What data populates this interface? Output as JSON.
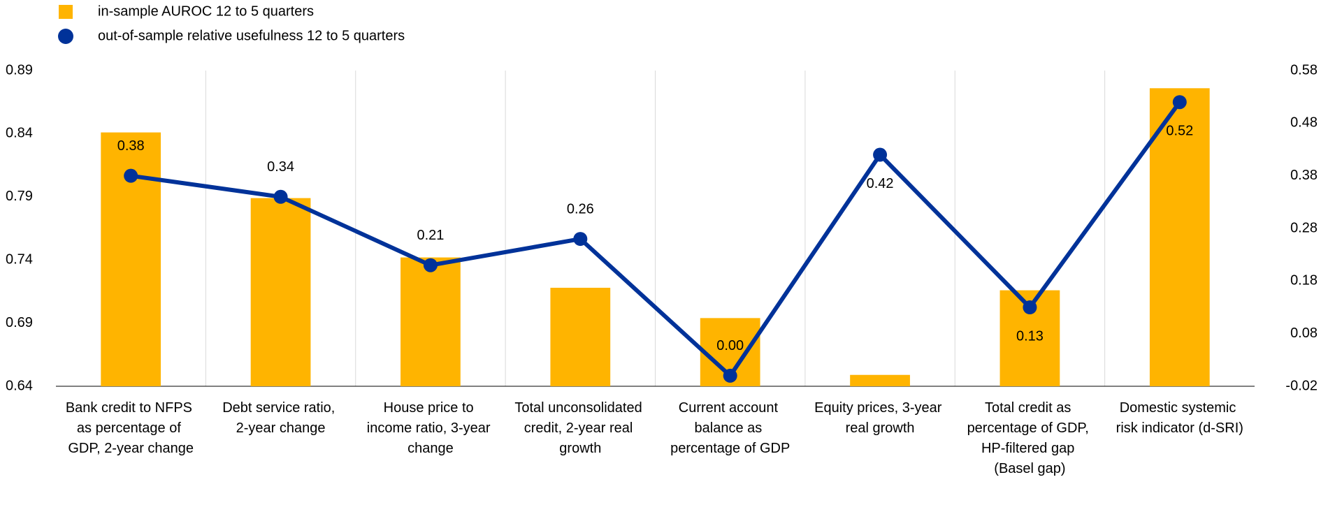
{
  "chart_data": {
    "type": "bar-line",
    "categories": [
      "Bank credit to NFPS as percentage of GDP, 2-year change",
      "Debt service ratio, 2-year change",
      "House price to income ratio, 3-year change",
      "Total unconsolidated credit, 2-year real growth",
      "Current account balance as percentage of GDP",
      "Equity prices, 3-year real growth",
      "Total credit as percentage of GDP, HP-filtered gap (Basel gap)",
      "Domestic systemic risk indicator (d-SRI)"
    ],
    "series": [
      {
        "name": "in-sample AUROC 12 to 5 quarters",
        "type": "bar",
        "color": "#ffb400",
        "values": [
          0.841,
          0.789,
          0.742,
          0.718,
          0.694,
          0.649,
          0.716,
          0.876
        ]
      },
      {
        "name": "out-of-sample relative usefulness 12 to 5 quarters",
        "type": "line",
        "axis": "y2",
        "color": "#003299",
        "values": [
          0.38,
          0.34,
          0.21,
          0.26,
          0,
          0.42,
          0.13,
          0.52
        ],
        "value_labels": [
          "0.38",
          "0.34",
          "0.21",
          "0.26",
          "0.00",
          "0.42",
          "0.13",
          "0.52"
        ]
      }
    ],
    "ylim": [
      0.64,
      0.89
    ],
    "yticks": [
      0.64,
      0.69,
      0.74,
      0.79,
      0.84,
      0.89
    ],
    "y2lim": [
      -0.02,
      0.58
    ],
    "y2ticks": [
      -0.02,
      0.08,
      0.18,
      0.28,
      0.38,
      0.48,
      0.58
    ],
    "grid": true,
    "legend": "top-left"
  }
}
